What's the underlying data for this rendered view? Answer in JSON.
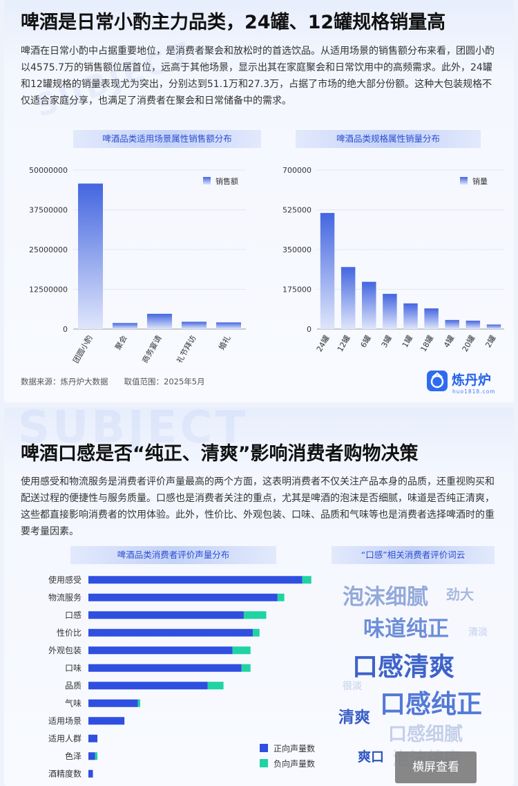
{
  "section1": {
    "title": "啤酒是日常小酌主力品类，24罐、12罐规格销量高",
    "paragraph": "啤酒在日常小酌中占据重要地位，是消费者聚会和放松时的首选饮品。从适用场景的销售额分布来看，团圆小酌以4575.7万的销售额位居首位，远高于其他场景，显示出其在家庭聚会和日常饮用中的高频需求。此外，24罐和12罐规格的销量表现尤为突出，分别达到51.1万和27.3万，占据了市场的绝大部分份额。这种大包装规格不仅适合家庭分享，也满足了消费者在聚会和日常储备中的需求。",
    "chart1_title": "啤酒品类适用场景属性销售额分布",
    "chart2_title": "啤酒品类规格属性销量分布",
    "source": "数据来源：炼丹炉大数据　　取值范围：2025年5月",
    "logo_text": "炼丹炉",
    "logo_url": "huo1818.com",
    "watermark": "SUBJECT"
  },
  "section2": {
    "title": "啤酒口感是否“纯正、清爽”影响消费者购物决策",
    "paragraph": "使用感受和物流服务是消费者评价声量最高的两个方面，这表明消费者不仅关注产品本身的品质，还重视购买和配送过程的便捷性与服务质量。口感也是消费者关注的重点，尤其是啤酒的泡沫是否细腻，味道是否纯正清爽，这些都直接影响消费者的饮用体验。此外，性价比、外观包装、口味、品质和气味等也是消费者选择啤酒时的重要考量因素。",
    "chart3_title": "啤酒品类消费者评价声量分布",
    "cloud_title": "“口感”相关消费者评价词云",
    "watermark": "SUBJECT",
    "wordcloud": [
      {
        "text": "泡沫细腻",
        "color": "#93a9da",
        "size": 31
      },
      {
        "text": "劲大",
        "color": "#a8b8de",
        "size": 20
      },
      {
        "text": "味道纯正",
        "color": "#6d8ed8",
        "size": 31
      },
      {
        "text": "清淡",
        "color": "#d2dbf1",
        "size": 14
      },
      {
        "text": "口感清爽",
        "color": "#3e63c9",
        "size": 37
      },
      {
        "text": "很淡",
        "color": "#d2dbf1",
        "size": 14
      },
      {
        "text": "口感纯正",
        "color": "#5379d6",
        "size": 37
      },
      {
        "text": "清爽",
        "color": "#3a5fc4",
        "size": 23
      },
      {
        "text": "口感细腻",
        "color": "#c4cfe9",
        "size": 27
      },
      {
        "text": "爽口",
        "color": "#2f54bd",
        "size": 19
      },
      {
        "text": "泡沫绵密",
        "color": "#dde4f4",
        "size": 25
      }
    ]
  },
  "overlay_button": "横屏查看",
  "chart_data": [
    {
      "type": "bar",
      "title": "啤酒品类适用场景属性销售额分布",
      "categories": [
        "团圆小酌",
        "聚会",
        "商务宴请",
        "礼节拜访",
        "婚礼"
      ],
      "series": [
        {
          "name": "销售额",
          "values": [
            45757000,
            1900000,
            4800000,
            2300000,
            2100000
          ]
        }
      ],
      "ylim": [
        0,
        50000000
      ],
      "yticks": [
        "0",
        "12500000",
        "25000000",
        "37500000",
        "50000000"
      ],
      "color": "#4466e0",
      "legend": "top-right",
      "grid": true
    },
    {
      "type": "bar",
      "title": "啤酒品类规格属性销量分布",
      "categories": [
        "24罐",
        "12罐",
        "6罐",
        "3罐",
        "1罐",
        "18罐",
        "4罐",
        "20罐",
        "2罐"
      ],
      "series": [
        {
          "name": "销量",
          "values": [
            511000,
            273000,
            208000,
            155000,
            113000,
            91000,
            40000,
            37000,
            20000
          ]
        }
      ],
      "ylim": [
        0,
        700000
      ],
      "yticks": [
        "0",
        "175000",
        "350000",
        "525000",
        "700000"
      ],
      "color": "#4466e0",
      "legend": "top-right",
      "grid": true
    },
    {
      "type": "bar",
      "orientation": "horizontal",
      "stacked": true,
      "title": "啤酒品类消费者评价声量分布",
      "categories": [
        "使用感受",
        "物流服务",
        "口感",
        "性价比",
        "外观包装",
        "口味",
        "品质",
        "气味",
        "适用场景",
        "适用人群",
        "色泽",
        "酒精度数"
      ],
      "series": [
        {
          "name": "正向声量数",
          "color": "#2f4fe0",
          "values": [
            95,
            84,
            69,
            73,
            64,
            68,
            53,
            22,
            16,
            4,
            3,
            2
          ]
        },
        {
          "name": "负向声量数",
          "color": "#1fd3a3",
          "values": [
            4,
            3,
            10,
            3,
            8,
            4,
            7,
            1,
            0,
            0,
            1,
            0
          ]
        }
      ],
      "xlim": [
        0,
        100
      ],
      "legend": "bottom-right"
    }
  ]
}
